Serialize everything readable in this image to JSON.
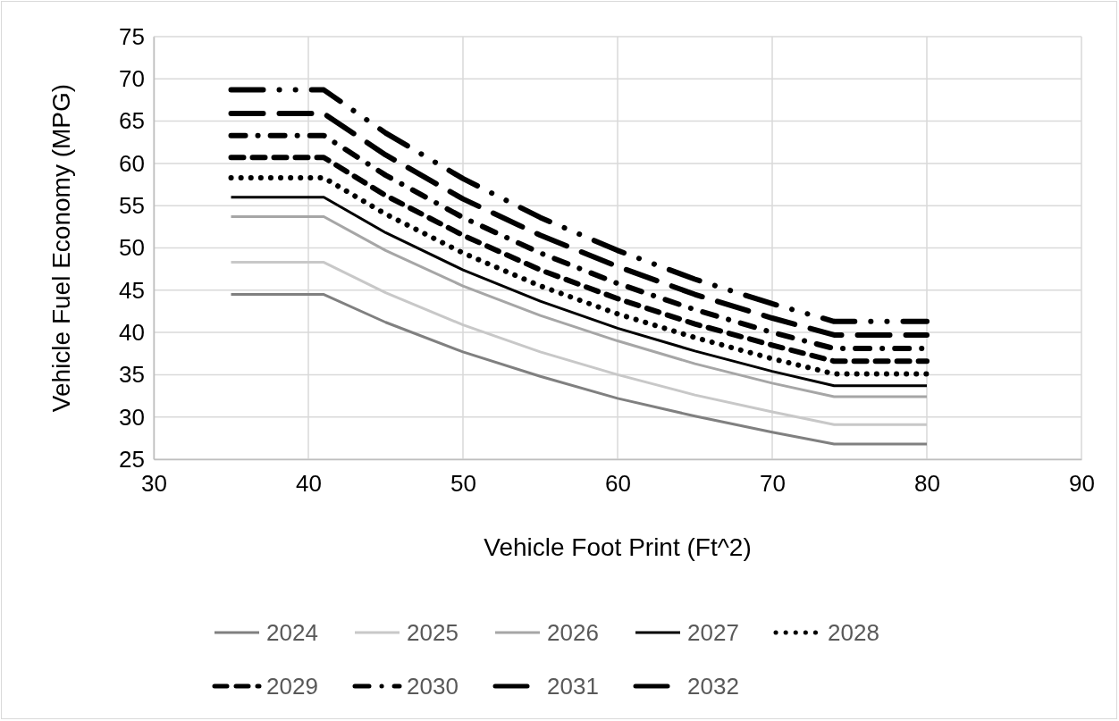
{
  "chart_data": {
    "type": "line",
    "xlabel": "Vehicle Foot Print (Ft^2)",
    "ylabel": "Vehicle Fuel Economy (MPG)",
    "x": [
      35,
      41,
      45,
      50,
      55,
      60,
      65,
      70,
      74,
      80
    ],
    "xlim": [
      30,
      90
    ],
    "xticks": [
      30,
      40,
      50,
      60,
      70,
      80,
      90
    ],
    "ylim": [
      25,
      75
    ],
    "yticks": [
      25,
      30,
      35,
      40,
      45,
      50,
      55,
      60,
      65,
      70,
      75
    ],
    "grid": true,
    "legend": "bottom",
    "marker": "none",
    "series": [
      {
        "name": "2024",
        "color": "#808080",
        "line_style": "solid",
        "values": [
          44.5,
          44.5,
          41.2,
          37.7,
          34.8,
          32.2,
          30.1,
          28.2,
          26.8,
          26.8
        ]
      },
      {
        "name": "2025",
        "color": "#c8c8c8",
        "line_style": "solid",
        "values": [
          48.3,
          48.3,
          44.7,
          40.9,
          37.7,
          35.0,
          32.6,
          30.6,
          29.1,
          29.1
        ]
      },
      {
        "name": "2026",
        "color": "#a6a6a6",
        "line_style": "solid",
        "values": [
          53.7,
          53.7,
          49.7,
          45.5,
          42.0,
          39.0,
          36.3,
          34.0,
          32.4,
          32.4
        ]
      },
      {
        "name": "2027",
        "color": "#000000",
        "line_style": "solid",
        "values": [
          56.0,
          56.0,
          51.8,
          47.4,
          43.7,
          40.5,
          37.8,
          35.4,
          33.7,
          33.7
        ]
      },
      {
        "name": "2028",
        "color": "#000000",
        "line_style": "dotted",
        "values": [
          58.3,
          58.3,
          54.0,
          49.4,
          45.5,
          42.2,
          39.4,
          36.9,
          35.1,
          35.1
        ]
      },
      {
        "name": "2029",
        "color": "#000000",
        "line_style": "dashed",
        "values": [
          60.7,
          60.7,
          56.2,
          51.5,
          47.4,
          44.0,
          41.0,
          38.5,
          36.6,
          36.6
        ]
      },
      {
        "name": "2030",
        "color": "#000000",
        "line_style": "dashdot",
        "values": [
          63.3,
          63.3,
          58.6,
          53.6,
          49.4,
          45.8,
          42.7,
          40.0,
          38.1,
          38.1
        ]
      },
      {
        "name": "2031",
        "color": "#000000",
        "line_style": "longdash",
        "values": [
          65.9,
          65.9,
          61.0,
          55.8,
          51.5,
          47.8,
          44.5,
          41.7,
          39.7,
          39.7
        ]
      },
      {
        "name": "2032",
        "color": "#000000",
        "line_style": "longdashdotdot",
        "values": [
          68.7,
          68.7,
          63.6,
          58.2,
          53.6,
          49.7,
          46.3,
          43.4,
          41.3,
          41.3
        ]
      }
    ]
  }
}
